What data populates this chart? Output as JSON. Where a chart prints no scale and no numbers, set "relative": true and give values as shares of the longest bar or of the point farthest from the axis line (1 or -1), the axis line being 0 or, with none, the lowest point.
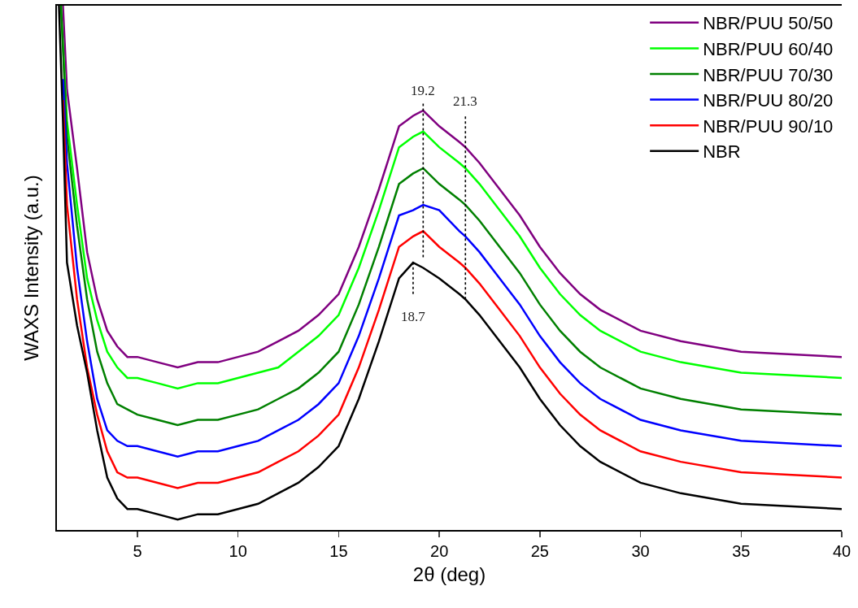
{
  "chart_data": {
    "type": "line",
    "relative": true,
    "xlabel": "2θ (deg)",
    "ylabel": "WAXS Intensity (a.u.)",
    "xlim": [
      1,
      40
    ],
    "xticks": [
      5,
      10,
      15,
      20,
      25,
      30,
      35,
      40
    ],
    "tick_labels": "x",
    "grid": false,
    "legend": "top right",
    "marker": "none",
    "line_style": "solid",
    "ref_lines": [
      {
        "axis": "x",
        "value": 18.7,
        "label": "18.7",
        "color": "#000000",
        "line_style": "dotted"
      },
      {
        "axis": "x",
        "value": 19.2,
        "label": "19.2",
        "color": "#000000",
        "line_style": "dotted"
      },
      {
        "axis": "x",
        "value": 21.3,
        "label": "21.3",
        "color": "#000000",
        "line_style": "dotted"
      }
    ],
    "series": [
      {
        "name": "NBR/PUU 50/50",
        "color": "#800080",
        "x": [
          1.3,
          1.5,
          2,
          2.5,
          3,
          3.5,
          4,
          4.5,
          5,
          6,
          7,
          8,
          9,
          10,
          11,
          12,
          13,
          14,
          15,
          16,
          17,
          17.5,
          18,
          18.7,
          19.2,
          20,
          21,
          21.3,
          22,
          23,
          24,
          25,
          26,
          27,
          28,
          30,
          32,
          35,
          40
        ],
        "values": [
          1.0,
          0.84,
          0.69,
          0.53,
          0.44,
          0.38,
          0.35,
          0.33,
          0.33,
          0.32,
          0.31,
          0.32,
          0.32,
          0.33,
          0.34,
          0.36,
          0.38,
          0.41,
          0.45,
          0.54,
          0.65,
          0.71,
          0.77,
          0.79,
          0.8,
          0.77,
          0.74,
          0.73,
          0.7,
          0.65,
          0.6,
          0.54,
          0.49,
          0.45,
          0.42,
          0.38,
          0.36,
          0.34,
          0.33
        ]
      },
      {
        "name": "NBR/PUU 60/40",
        "color": "#00ff00",
        "x": [
          1.2,
          1.5,
          2,
          2.5,
          3,
          3.5,
          4,
          4.5,
          5,
          6,
          7,
          8,
          9,
          10,
          11,
          12,
          13,
          14,
          15,
          16,
          17,
          17.5,
          18,
          18.7,
          19.2,
          20,
          21,
          21.3,
          22,
          23,
          24,
          25,
          26,
          27,
          28,
          30,
          32,
          35,
          40
        ],
        "values": [
          1.0,
          0.78,
          0.62,
          0.48,
          0.4,
          0.34,
          0.31,
          0.29,
          0.29,
          0.28,
          0.27,
          0.28,
          0.28,
          0.29,
          0.3,
          0.31,
          0.34,
          0.37,
          0.41,
          0.5,
          0.61,
          0.67,
          0.73,
          0.75,
          0.76,
          0.73,
          0.7,
          0.69,
          0.66,
          0.61,
          0.56,
          0.5,
          0.45,
          0.41,
          0.38,
          0.34,
          0.32,
          0.3,
          0.29
        ]
      },
      {
        "name": "NBR/PUU 70/30",
        "color": "#008000",
        "x": [
          1.2,
          1.5,
          2,
          2.5,
          3,
          3.5,
          4,
          4.5,
          5,
          6,
          7,
          8,
          9,
          10,
          11,
          12,
          13,
          14,
          15,
          16,
          17,
          17.5,
          18,
          18.7,
          19.2,
          20,
          21,
          21.3,
          22,
          23,
          24,
          25,
          26,
          27,
          28,
          30,
          32,
          35,
          40
        ],
        "values": [
          1.0,
          0.75,
          0.58,
          0.44,
          0.34,
          0.28,
          0.24,
          0.23,
          0.22,
          0.21,
          0.2,
          0.21,
          0.21,
          0.22,
          0.23,
          0.25,
          0.27,
          0.3,
          0.34,
          0.43,
          0.54,
          0.6,
          0.66,
          0.68,
          0.69,
          0.66,
          0.63,
          0.62,
          0.59,
          0.54,
          0.49,
          0.43,
          0.38,
          0.34,
          0.31,
          0.27,
          0.25,
          0.23,
          0.22
        ]
      },
      {
        "name": "NBR/PUU 80/20",
        "color": "#0000ff",
        "x": [
          1.3,
          1.5,
          2,
          2.5,
          3,
          3.5,
          4,
          4.5,
          5,
          6,
          7,
          8,
          9,
          10,
          11,
          12,
          13,
          14,
          15,
          16,
          17,
          17.5,
          18,
          18.7,
          19.2,
          20,
          21,
          21.3,
          22,
          23,
          24,
          25,
          26,
          27,
          28,
          30,
          32,
          35,
          40
        ],
        "values": [
          0.86,
          0.7,
          0.5,
          0.36,
          0.25,
          0.19,
          0.17,
          0.16,
          0.16,
          0.15,
          0.14,
          0.15,
          0.15,
          0.16,
          0.17,
          0.19,
          0.21,
          0.24,
          0.28,
          0.37,
          0.48,
          0.54,
          0.6,
          0.61,
          0.62,
          0.61,
          0.57,
          0.56,
          0.53,
          0.48,
          0.43,
          0.37,
          0.32,
          0.28,
          0.25,
          0.21,
          0.19,
          0.17,
          0.16
        ]
      },
      {
        "name": "NBR/PUU 90/10",
        "color": "#ff0000",
        "x": [
          1.3,
          1.5,
          2,
          2.5,
          3,
          3.5,
          4,
          4.5,
          5,
          6,
          7,
          8,
          9,
          10,
          11,
          12,
          13,
          14,
          15,
          16,
          17,
          17.5,
          18,
          18.7,
          19.2,
          20,
          21,
          21.3,
          22,
          23,
          24,
          25,
          26,
          27,
          28,
          30,
          32,
          35,
          40
        ],
        "values": [
          0.82,
          0.62,
          0.44,
          0.31,
          0.22,
          0.15,
          0.11,
          0.1,
          0.1,
          0.09,
          0.08,
          0.09,
          0.09,
          0.1,
          0.11,
          0.13,
          0.15,
          0.18,
          0.22,
          0.31,
          0.42,
          0.48,
          0.54,
          0.56,
          0.57,
          0.54,
          0.51,
          0.5,
          0.47,
          0.42,
          0.37,
          0.31,
          0.26,
          0.22,
          0.19,
          0.15,
          0.13,
          0.11,
          0.1
        ]
      },
      {
        "name": "NBR",
        "color": "#000000",
        "x": [
          1.1,
          1.3,
          1.5,
          2,
          2.5,
          3,
          3.5,
          4,
          4.5,
          5,
          6,
          7,
          8,
          9,
          10,
          11,
          12,
          13,
          14,
          15,
          16,
          17,
          17.5,
          18,
          18.7,
          19.2,
          20,
          21,
          21.3,
          22,
          23,
          24,
          25,
          26,
          27,
          28,
          30,
          32,
          35,
          40
        ],
        "values": [
          1.0,
          0.78,
          0.51,
          0.39,
          0.3,
          0.19,
          0.1,
          0.06,
          0.04,
          0.04,
          0.03,
          0.02,
          0.03,
          0.03,
          0.04,
          0.05,
          0.07,
          0.09,
          0.12,
          0.16,
          0.25,
          0.36,
          0.42,
          0.48,
          0.51,
          0.5,
          0.48,
          0.45,
          0.44,
          0.41,
          0.36,
          0.31,
          0.25,
          0.2,
          0.16,
          0.13,
          0.09,
          0.07,
          0.05,
          0.04
        ]
      }
    ]
  }
}
